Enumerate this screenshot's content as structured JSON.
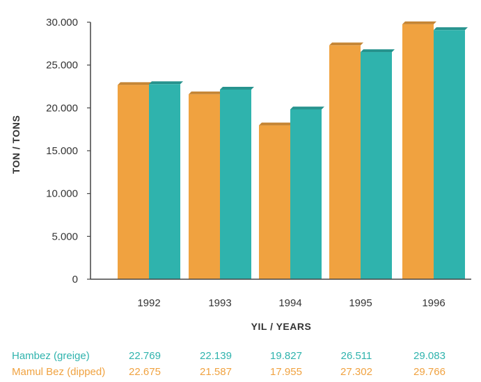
{
  "chart_data": {
    "type": "bar",
    "ylabel": "TON / TONS",
    "xlabel": "YIL / YEARS",
    "categories": [
      "1992",
      "1993",
      "1994",
      "1995",
      "1996"
    ],
    "ylim": [
      0,
      30000
    ],
    "yticks": [
      "0",
      "5.000",
      "10.000",
      "15.000",
      "20.000",
      "25.000",
      "30.000"
    ],
    "grid": false,
    "series": [
      {
        "name": "Mamul Bez (dipped)",
        "color": "#f0a240",
        "values": [
          22675,
          21587,
          17955,
          27302,
          29766
        ],
        "labels": [
          "22.675",
          "21.587",
          "17.955",
          "27.302",
          "29.766"
        ]
      },
      {
        "name": "Hambez (greige)",
        "color": "#2fb3ad",
        "values": [
          22769,
          22139,
          19827,
          26511,
          29083
        ],
        "labels": [
          "22.769",
          "22.139",
          "19.827",
          "26.511",
          "29.083"
        ]
      }
    ]
  },
  "table": {
    "rows": [
      {
        "label": "Hambez (greige)",
        "color": "#2fb3ad",
        "values": [
          "22.769",
          "22.139",
          "19.827",
          "26.511",
          "29.083"
        ]
      },
      {
        "label": "Mamul Bez (dipped)",
        "color": "#f0a240",
        "values": [
          "22.675",
          "21.587",
          "17.955",
          "27.302",
          "29.766"
        ]
      }
    ]
  }
}
